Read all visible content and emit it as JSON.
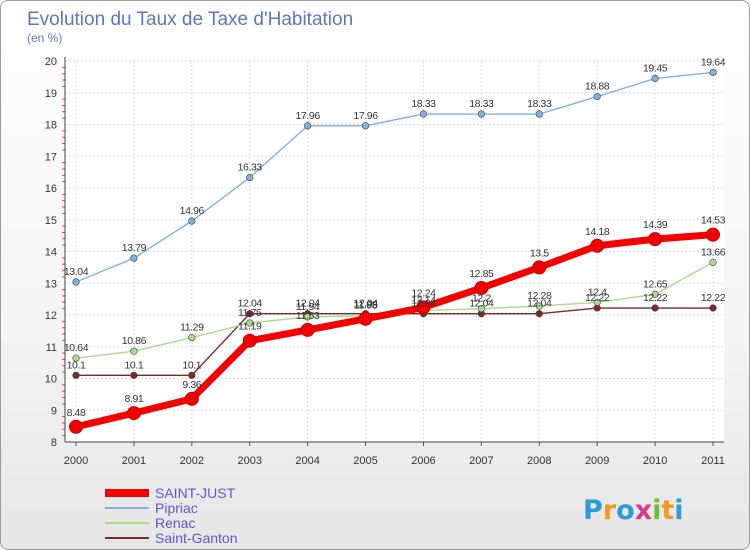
{
  "chart_data": {
    "type": "line",
    "title": "Evolution du Taux de Taxe d'Habitation",
    "subtitle": "(en %)",
    "categories": [
      "2000",
      "2001",
      "2002",
      "2003",
      "2004",
      "2005",
      "2006",
      "2007",
      "2008",
      "2009",
      "2010",
      "2011"
    ],
    "ylim": [
      8,
      20
    ],
    "yticks": [
      "8",
      "9",
      "10",
      "11",
      "12",
      "13",
      "14",
      "15",
      "16",
      "17",
      "18",
      "19",
      "20"
    ],
    "grid": true,
    "legend_position": "bottom-left",
    "series": [
      {
        "name": "Saint-Ganton",
        "color": "#7a2a2a",
        "values": [
          10.1,
          10.1,
          10.1,
          12.04,
          12.04,
          12.04,
          12.04,
          12.04,
          12.04,
          12.22,
          12.22,
          12.22
        ]
      },
      {
        "name": "Renac",
        "color": "#a8dc8c",
        "values": [
          10.64,
          10.86,
          11.29,
          11.75,
          11.94,
          11.98,
          12.14,
          12.2,
          12.28,
          12.4,
          12.65,
          13.66
        ]
      },
      {
        "name": "Pipriac",
        "color": "#7fb2e0",
        "values": [
          13.04,
          13.79,
          14.96,
          16.33,
          17.96,
          17.96,
          18.33,
          18.33,
          18.33,
          18.88,
          19.45,
          19.64
        ]
      },
      {
        "name": "SAINT-JUST",
        "color": "#f50000",
        "values": [
          8.48,
          8.91,
          9.36,
          11.19,
          11.53,
          11.88,
          12.24,
          12.85,
          13.5,
          14.18,
          14.39,
          14.53
        ]
      }
    ],
    "data_labels": {
      "Saint-Ganton": [
        "10.1",
        "10.1",
        "10.1",
        "12.04",
        "12.04",
        "12.04",
        "12.04",
        "12.04",
        "12.04",
        "12.22",
        "12.22",
        "12.22"
      ],
      "Renac": [
        "10.64",
        "10.86",
        "11.29",
        "11.75",
        "11.94",
        "11.98",
        "12.14",
        "12.2",
        "12.28",
        "12.4",
        "12.65",
        "13.66"
      ],
      "Pipriac": [
        "13.04",
        "13.79",
        "14.96",
        "16.33",
        "17.96",
        "17.96",
        "18.33",
        "18.33",
        "18.33",
        "18.88",
        "19.45",
        "19.64"
      ],
      "SAINT-JUST": [
        "8.48",
        "8.91",
        "9.36",
        "11.19",
        "11.53",
        "11.88",
        "12.24",
        "12.85",
        "13.5",
        "14.18",
        "14.39",
        "14.53"
      ]
    },
    "legend": [
      {
        "name": "SAINT-JUST",
        "color": "#f50000"
      },
      {
        "name": "Pipriac",
        "color": "#7fb2e0"
      },
      {
        "name": "Renac",
        "color": "#a8dc8c"
      },
      {
        "name": "Saint-Ganton",
        "color": "#7a2a2a"
      }
    ]
  },
  "logo": {
    "text": "Proxiti",
    "letters": [
      "P",
      "r",
      "o",
      "x",
      "i",
      "t",
      "i"
    ],
    "colors": [
      "#2e9ad6",
      "#f29a1a",
      "#2e9ad6",
      "#d63a8a",
      "#6cbf3a",
      "#f29a1a",
      "#2e9ad6"
    ]
  }
}
